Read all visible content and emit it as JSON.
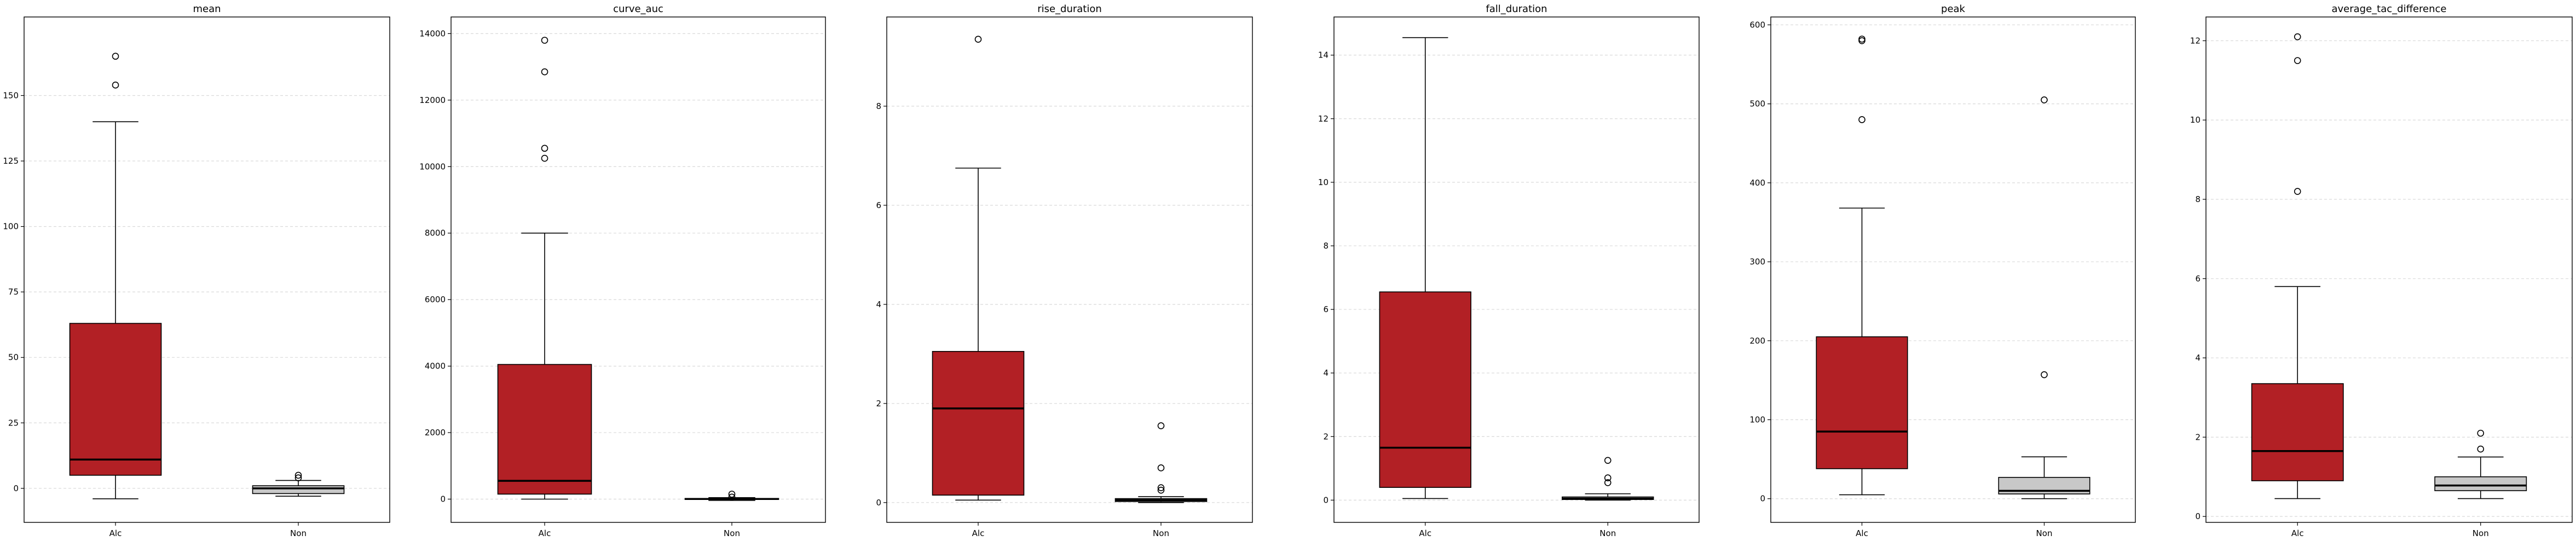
{
  "colors": {
    "alc_box": "#b22025",
    "non_box": "#c8c8c8",
    "median": "#000000",
    "grid": "#d9d9d9"
  },
  "chart_data": [
    {
      "type": "box",
      "title": "mean",
      "categories": [
        "Alc",
        "Non"
      ],
      "ylim": [
        -13,
        180
      ],
      "yticks": [
        0,
        25,
        50,
        75,
        100,
        125,
        150
      ],
      "grid": "y",
      "boxes": [
        {
          "label": "Alc",
          "whislo": -4,
          "q1": 5,
          "med": 11,
          "q3": 63,
          "whishi": 140,
          "fliers": [
            165,
            154
          ]
        },
        {
          "label": "Non",
          "whislo": -3,
          "q1": -2,
          "med": 0,
          "q3": 1,
          "whishi": 3,
          "fliers": [
            5,
            4
          ]
        }
      ]
    },
    {
      "type": "box",
      "title": "curve_auc",
      "categories": [
        "Alc",
        "Non"
      ],
      "ylim": [
        -700,
        14500
      ],
      "yticks": [
        0,
        2000,
        4000,
        6000,
        8000,
        10000,
        12000,
        14000
      ],
      "grid": "y",
      "boxes": [
        {
          "label": "Alc",
          "whislo": 0,
          "q1": 150,
          "med": 550,
          "q3": 4050,
          "whishi": 8000,
          "fliers": [
            13800,
            12850,
            10550,
            10250
          ]
        },
        {
          "label": "Non",
          "whislo": -40,
          "q1": -10,
          "med": 5,
          "q3": 20,
          "whishi": 45,
          "fliers": [
            150,
            60
          ]
        }
      ]
    },
    {
      "type": "box",
      "title": "rise_duration",
      "categories": [
        "Alc",
        "Non"
      ],
      "ylim": [
        -0.4,
        9.8
      ],
      "yticks": [
        0,
        2,
        4,
        6,
        8
      ],
      "grid": "y",
      "boxes": [
        {
          "label": "Alc",
          "whislo": 0.05,
          "q1": 0.15,
          "med": 1.9,
          "q3": 3.05,
          "whishi": 6.75,
          "fliers": [
            9.35
          ]
        },
        {
          "label": "Non",
          "whislo": 0.0,
          "q1": 0.02,
          "med": 0.05,
          "q3": 0.08,
          "whishi": 0.12,
          "fliers": [
            1.55,
            0.7,
            0.3,
            0.25
          ]
        }
      ]
    },
    {
      "type": "box",
      "title": "fall_duration",
      "categories": [
        "Alc",
        "Non"
      ],
      "ylim": [
        -0.7,
        15.2
      ],
      "yticks": [
        0,
        2,
        4,
        6,
        8,
        10,
        12,
        14
      ],
      "grid": "y",
      "boxes": [
        {
          "label": "Alc",
          "whislo": 0.05,
          "q1": 0.4,
          "med": 1.65,
          "q3": 6.55,
          "whishi": 14.55,
          "fliers": []
        },
        {
          "label": "Non",
          "whislo": 0.0,
          "q1": 0.02,
          "med": 0.05,
          "q3": 0.1,
          "whishi": 0.2,
          "fliers": [
            1.25,
            0.7,
            0.55
          ]
        }
      ]
    },
    {
      "type": "box",
      "title": "peak",
      "categories": [
        "Alc",
        "Non"
      ],
      "ylim": [
        -30,
        610
      ],
      "yticks": [
        0,
        100,
        200,
        300,
        400,
        500,
        600
      ],
      "grid": "y",
      "boxes": [
        {
          "label": "Alc",
          "whislo": 5,
          "q1": 38,
          "med": 85,
          "q3": 205,
          "whishi": 368,
          "fliers": [
            582,
            580,
            480
          ]
        },
        {
          "label": "Non",
          "whislo": 0,
          "q1": 6,
          "med": 10,
          "q3": 27,
          "whishi": 53,
          "fliers": [
            505,
            157
          ]
        }
      ]
    },
    {
      "type": "box",
      "title": "average_tac_difference",
      "categories": [
        "Alc",
        "Non"
      ],
      "ylim": [
        -0.15,
        12.6
      ],
      "yticks": [
        0,
        2,
        4,
        6,
        8,
        10,
        12
      ],
      "grid": "y",
      "boxes": [
        {
          "label": "Alc",
          "whislo": 0.45,
          "q1": 0.9,
          "med": 1.65,
          "q3": 3.35,
          "whishi": 5.8,
          "fliers": [
            12.1,
            11.5,
            8.2
          ]
        },
        {
          "label": "Non",
          "whislo": 0.45,
          "q1": 0.65,
          "med": 0.78,
          "q3": 1.0,
          "whishi": 1.5,
          "fliers": [
            2.1,
            1.7
          ]
        }
      ]
    }
  ]
}
